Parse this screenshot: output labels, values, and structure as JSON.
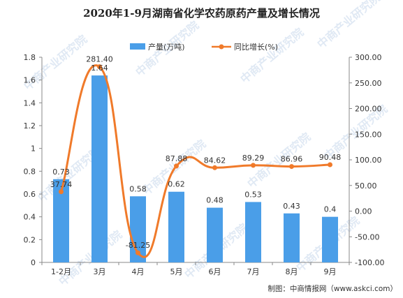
{
  "credit": "制图：中商情报网（www.askci.com）",
  "watermark": "中商产业研究院",
  "colors": {
    "bar": "#4a9ee8",
    "line": "#f07a2a",
    "text": "#333333",
    "axis": "#888888"
  },
  "chart_data": {
    "type": "bar",
    "title": "2020年1-9月湖南省化学农药原药产量及增长情况",
    "categories": [
      "1-2月",
      "3月",
      "4月",
      "5月",
      "6月",
      "7月",
      "8月",
      "9月"
    ],
    "series": [
      {
        "name": "产量(万吨)",
        "type": "bar",
        "axis": "left",
        "values": [
          0.73,
          1.64,
          0.58,
          0.62,
          0.48,
          0.53,
          0.43,
          0.4
        ],
        "labels": [
          "0.73",
          "1.64",
          "0.58",
          "0.62",
          "0.48",
          "0.53",
          "0.43",
          "0.4"
        ]
      },
      {
        "name": "同比增长(%)",
        "type": "line",
        "axis": "right",
        "values": [
          37.74,
          281.4,
          -81.25,
          87.88,
          84.62,
          89.29,
          86.96,
          90.48
        ],
        "labels": [
          "37.74",
          "281.40",
          "-81.25",
          "87.88",
          "84.62",
          "89.29",
          "86.96",
          "90.48"
        ]
      }
    ],
    "y_left": {
      "min": 0,
      "max": 1.8,
      "ticks": [
        0,
        0.2,
        0.4,
        0.6,
        0.8,
        1,
        1.2,
        1.4,
        1.6,
        1.8
      ],
      "tick_labels": [
        "0",
        "0.2",
        "0.4",
        "0.6",
        "0.8",
        "1",
        "1.2",
        "1.4",
        "1.6",
        "1.8"
      ]
    },
    "y_right": {
      "min": -100,
      "max": 300,
      "ticks": [
        -100,
        -50,
        0,
        50,
        100,
        150,
        200,
        250,
        300
      ],
      "tick_labels": [
        "-100.00",
        "-50.00",
        "0.00",
        "50.00",
        "100.00",
        "150.00",
        "200.00",
        "250.00",
        "300.00"
      ]
    },
    "legend": "top-center",
    "grid": false
  }
}
